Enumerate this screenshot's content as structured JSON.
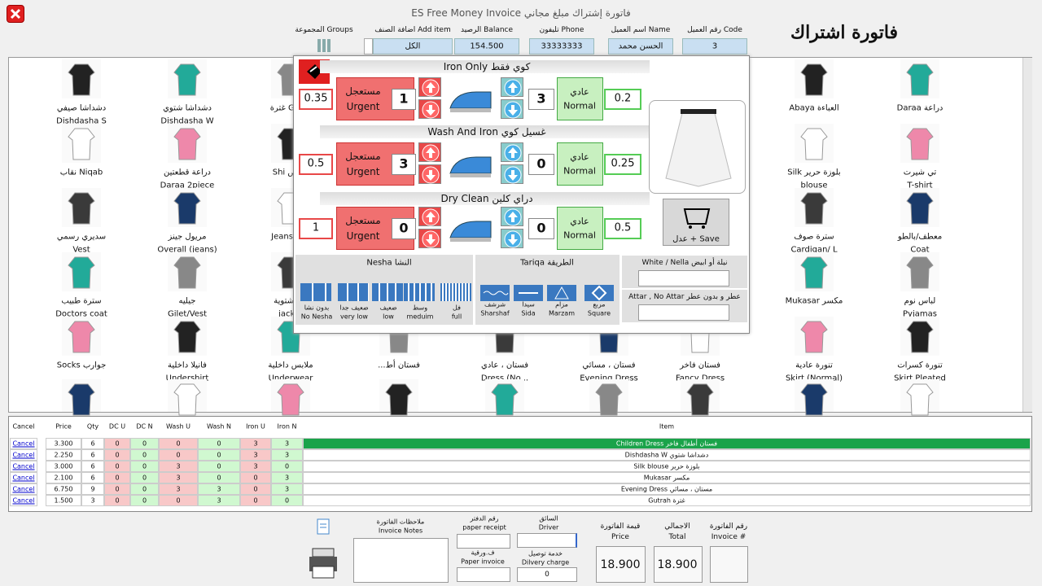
{
  "window": {
    "title": "ES Free Money Invoice  فاتورة إشتراك مبلغ مجاني",
    "heading": "فاتورة اشتراك"
  },
  "fields": [
    {
      "label": "رقم العميل  Code",
      "value": "3"
    },
    {
      "label": "اسم العميل  Name",
      "value": "الحسن محمد"
    },
    {
      "label": "تليفون  Phone",
      "value": "33333333"
    },
    {
      "label": "الرصيد  Balance",
      "value": "154.500"
    },
    {
      "label": "اضافة الصنف  Add item",
      "value": "الكل"
    },
    {
      "label": "المجموعة  Groups"
    }
  ],
  "item_columns": [
    [
      {
        "l1": "دشداشا صيفي",
        "l2": "Dishdasha S"
      },
      {
        "l1": "نقاب Niqab"
      },
      {
        "l1": "سديري رسمي",
        "l2": "Vest"
      },
      {
        "l1": "سترة طبيب",
        "l2": "Doctors coat"
      },
      {
        "l1": "Socks جوارب"
      }
    ],
    [
      {
        "l1": "دشداشا شتوي",
        "l2": "Dishdasha W"
      },
      {
        "l1": "دراعة قطعتين",
        "l2": "Daraa 2piece"
      },
      {
        "l1": "مريول جينز",
        "l2": "Overall (jeans)"
      },
      {
        "l1": "جيليه",
        "l2": "Gilet/Vest"
      },
      {
        "l1": "فانيلا داخلية",
        "l2": "Undershirt"
      }
    ],
    [
      {
        "l1": "غترة Gutra"
      },
      {
        "l1": "Shi قميص"
      },
      {
        "l1": "Jeans جينز"
      },
      {
        "l1": "ترة شتوية",
        "l2": "jacket"
      },
      {
        "l1": "ملابس داخلية",
        "l2": "Underwear"
      }
    ],
    [
      null,
      null,
      null,
      null,
      {
        "l1": "...فستان أط"
      }
    ],
    [
      null,
      null,
      null,
      null,
      {
        "l1": "فستان ، عادي",
        "l2": "Dress (No..."
      }
    ],
    [
      null,
      null,
      null,
      null,
      {
        "l1": "فستان ، مسائي",
        "l2": "Evening Dress"
      }
    ],
    [
      null,
      null,
      null,
      null,
      {
        "l1": "فستان فاخر",
        "l2": "Fancy Dress"
      }
    ],
    [
      {
        "l1": "Abaya العباءة"
      },
      {
        "l1": "Silk بلوزة حرير",
        "l2": "blouse"
      },
      {
        "l1": "سترة صوف",
        "l2": "Cardigan/ L"
      },
      {
        "l1": "Mukasar مكسر"
      },
      {
        "l1": "تنورة عادية",
        "l2": "Skirt (Normal)"
      }
    ],
    [
      {
        "l1": "Daraa دراعة"
      },
      {
        "l1": "تي شيرت",
        "l2": "T-shirt"
      },
      {
        "l1": "معطف/بالطو",
        "l2": "Coat"
      },
      {
        "l1": "لباس نوم",
        "l2": "Pyjamas"
      },
      {
        "l1": "تنورة كسرات",
        "l2": "Skirt Pleated"
      }
    ]
  ],
  "popup": {
    "services": [
      {
        "title": "Iron Only كوي فقط",
        "urgent_price": "0.35",
        "urgent_qty": "1",
        "normal_qty": "3",
        "normal_price": "0.2"
      },
      {
        "title": "Wash And Iron غسيل كوي",
        "urgent_price": "0.5",
        "urgent_qty": "3",
        "normal_qty": "0",
        "normal_price": "0.25"
      },
      {
        "title": "Dry Clean دراي كلين",
        "urgent_price": "1",
        "urgent_qty": "0",
        "normal_qty": "0",
        "normal_price": "0.5"
      }
    ],
    "urgent": {
      "ar": "مستعجل",
      "en": "Urgent"
    },
    "normal": {
      "ar": "عادي",
      "en": "Normal"
    },
    "save": "عدل + Save",
    "nesha": {
      "title": "Nesha  النشا",
      "options": [
        {
          "ar": "بدون نشا",
          "en": "No Nesha"
        },
        {
          "ar": "ضعيف جدا",
          "en": "very low"
        },
        {
          "ar": "ضعيف",
          "en": "low"
        },
        {
          "ar": "وسط",
          "en": "meduim"
        },
        {
          "ar": "فل",
          "en": "full"
        }
      ]
    },
    "tariqa": {
      "title": "Tariqa  الطريقة",
      "options": [
        {
          "ar": "شرشف",
          "en": "Sharshaf"
        },
        {
          "ar": "سيدا",
          "en": "Sida"
        },
        {
          "ar": "مزام",
          "en": "Marzam"
        },
        {
          "ar": "مربع",
          "en": "Square"
        }
      ]
    },
    "white": "White / Nella  نيلة أو ابيض",
    "attar": "Attar , No Attar  عطر و بدون عطر"
  },
  "table": {
    "headers": [
      "Cancel",
      "Price",
      "Qty",
      "DC U",
      "DC N",
      "Wash U",
      "Wash N",
      "Iron U",
      "Iron N",
      "Item"
    ],
    "rows": [
      [
        "Cancel",
        "3.300",
        "6",
        "0",
        "0",
        "0",
        "0",
        "3",
        "3",
        "Children Dress  فستان أطفال فاخر"
      ],
      [
        "Cancel",
        "2.250",
        "6",
        "0",
        "0",
        "0",
        "0",
        "3",
        "3",
        "Dishdasha W  دشداشا شتوي"
      ],
      [
        "Cancel",
        "3.000",
        "6",
        "0",
        "0",
        "3",
        "0",
        "3",
        "0",
        "Silk blouse  بلوزة حرير"
      ],
      [
        "Cancel",
        "2.100",
        "6",
        "0",
        "0",
        "3",
        "0",
        "0",
        "3",
        "Mukasar  مكسر"
      ],
      [
        "Cancel",
        "6.750",
        "9",
        "0",
        "0",
        "3",
        "3",
        "0",
        "3",
        "Evening Dress  مستان ، مسائي"
      ],
      [
        "Cancel",
        "1.500",
        "3",
        "0",
        "0",
        "0",
        "3",
        "0",
        "0",
        "Gutrah  غترة"
      ]
    ]
  },
  "footer": {
    "notes": {
      "ar": "ملاحظات الفاتورة",
      "en": "Invoice Notes"
    },
    "paper_receipt": {
      "ar": "رقم الدفتر",
      "en": "paper receipt"
    },
    "paper_invoice": {
      "ar": "ف.ورقية",
      "en": "Paper invoice"
    },
    "driver": {
      "ar": "السائق",
      "en": "Driver"
    },
    "delivery": {
      "ar": "خدمة توصيل",
      "en": "Dilvery charge",
      "value": "0"
    },
    "price": {
      "ar": "قيمة الفاتورة",
      "en": "Price",
      "value": "18.900"
    },
    "total": {
      "ar": "الاجمالي",
      "en": "Total",
      "value": "18.900"
    },
    "invoice_no": {
      "ar": "رقم الفاتورة",
      "en": "Invoice #"
    }
  }
}
